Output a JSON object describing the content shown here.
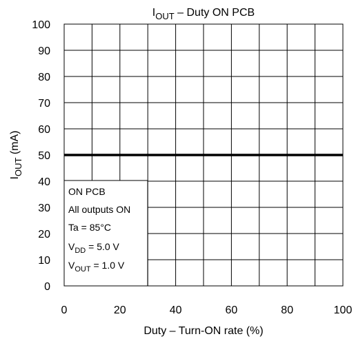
{
  "chart_data": {
    "type": "line",
    "title": {
      "main": "I",
      "sub": "OUT",
      "rest": " – Duty ON PCB"
    },
    "xlabel": "Duty – Turn-ON rate (%)",
    "ylabel": {
      "main": "I",
      "sub": "OUT",
      "rest": " (mA)"
    },
    "xlim": [
      0,
      100
    ],
    "ylim": [
      0,
      100
    ],
    "x_ticks": [
      0,
      20,
      40,
      60,
      80,
      100
    ],
    "y_ticks": [
      0,
      10,
      20,
      30,
      40,
      50,
      60,
      70,
      80,
      90,
      100
    ],
    "grid": true,
    "series": [
      {
        "x": [
          0,
          100
        ],
        "y": [
          50,
          50
        ],
        "color": "#000000"
      }
    ],
    "annotation": {
      "lines": [
        {
          "main": "ON PCB",
          "sub": "",
          "rest": ""
        },
        {
          "main": "All outputs ON",
          "sub": "",
          "rest": ""
        },
        {
          "main": "Ta = 85°C",
          "sub": "",
          "rest": ""
        },
        {
          "main": "V",
          "sub": "DD",
          "rest": " = 5.0 V"
        },
        {
          "main": "V",
          "sub": "OUT",
          "rest": " = 1.0 V"
        }
      ]
    }
  }
}
